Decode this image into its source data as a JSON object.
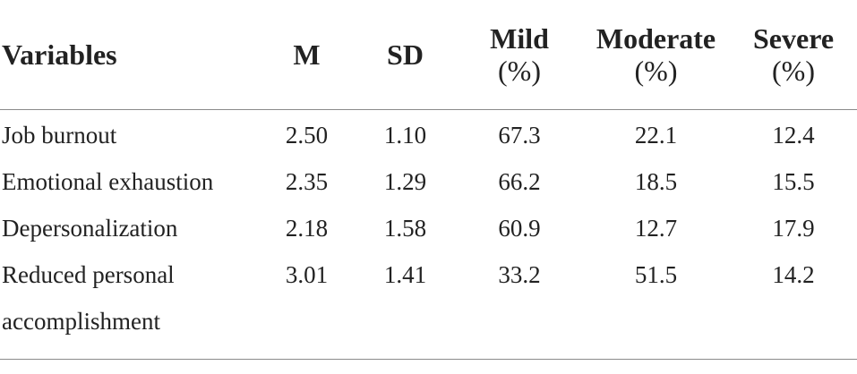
{
  "table": {
    "headers": {
      "variables": "Variables",
      "m": "M",
      "sd": "SD",
      "mild": "Mild",
      "mild_unit": "(%)",
      "moderate": "Moderate",
      "moderate_unit": "(%)",
      "severe": "Severe",
      "severe_unit": "(%)"
    },
    "rows": [
      {
        "variable": "Job burnout",
        "m": "2.50",
        "sd": "1.10",
        "mild": "67.3",
        "moderate": "22.1",
        "severe": "12.4"
      },
      {
        "variable": "Emotional exhaustion",
        "m": "2.35",
        "sd": "1.29",
        "mild": "66.2",
        "moderate": "18.5",
        "severe": "15.5"
      },
      {
        "variable": "Depersonalization",
        "m": "2.18",
        "sd": "1.58",
        "mild": "60.9",
        "moderate": "12.7",
        "severe": "17.9"
      },
      {
        "variable_line1": "Reduced personal",
        "variable_line2": "accomplishment",
        "m": "3.01",
        "sd": "1.41",
        "mild": "33.2",
        "moderate": "51.5",
        "severe": "14.2"
      }
    ]
  }
}
